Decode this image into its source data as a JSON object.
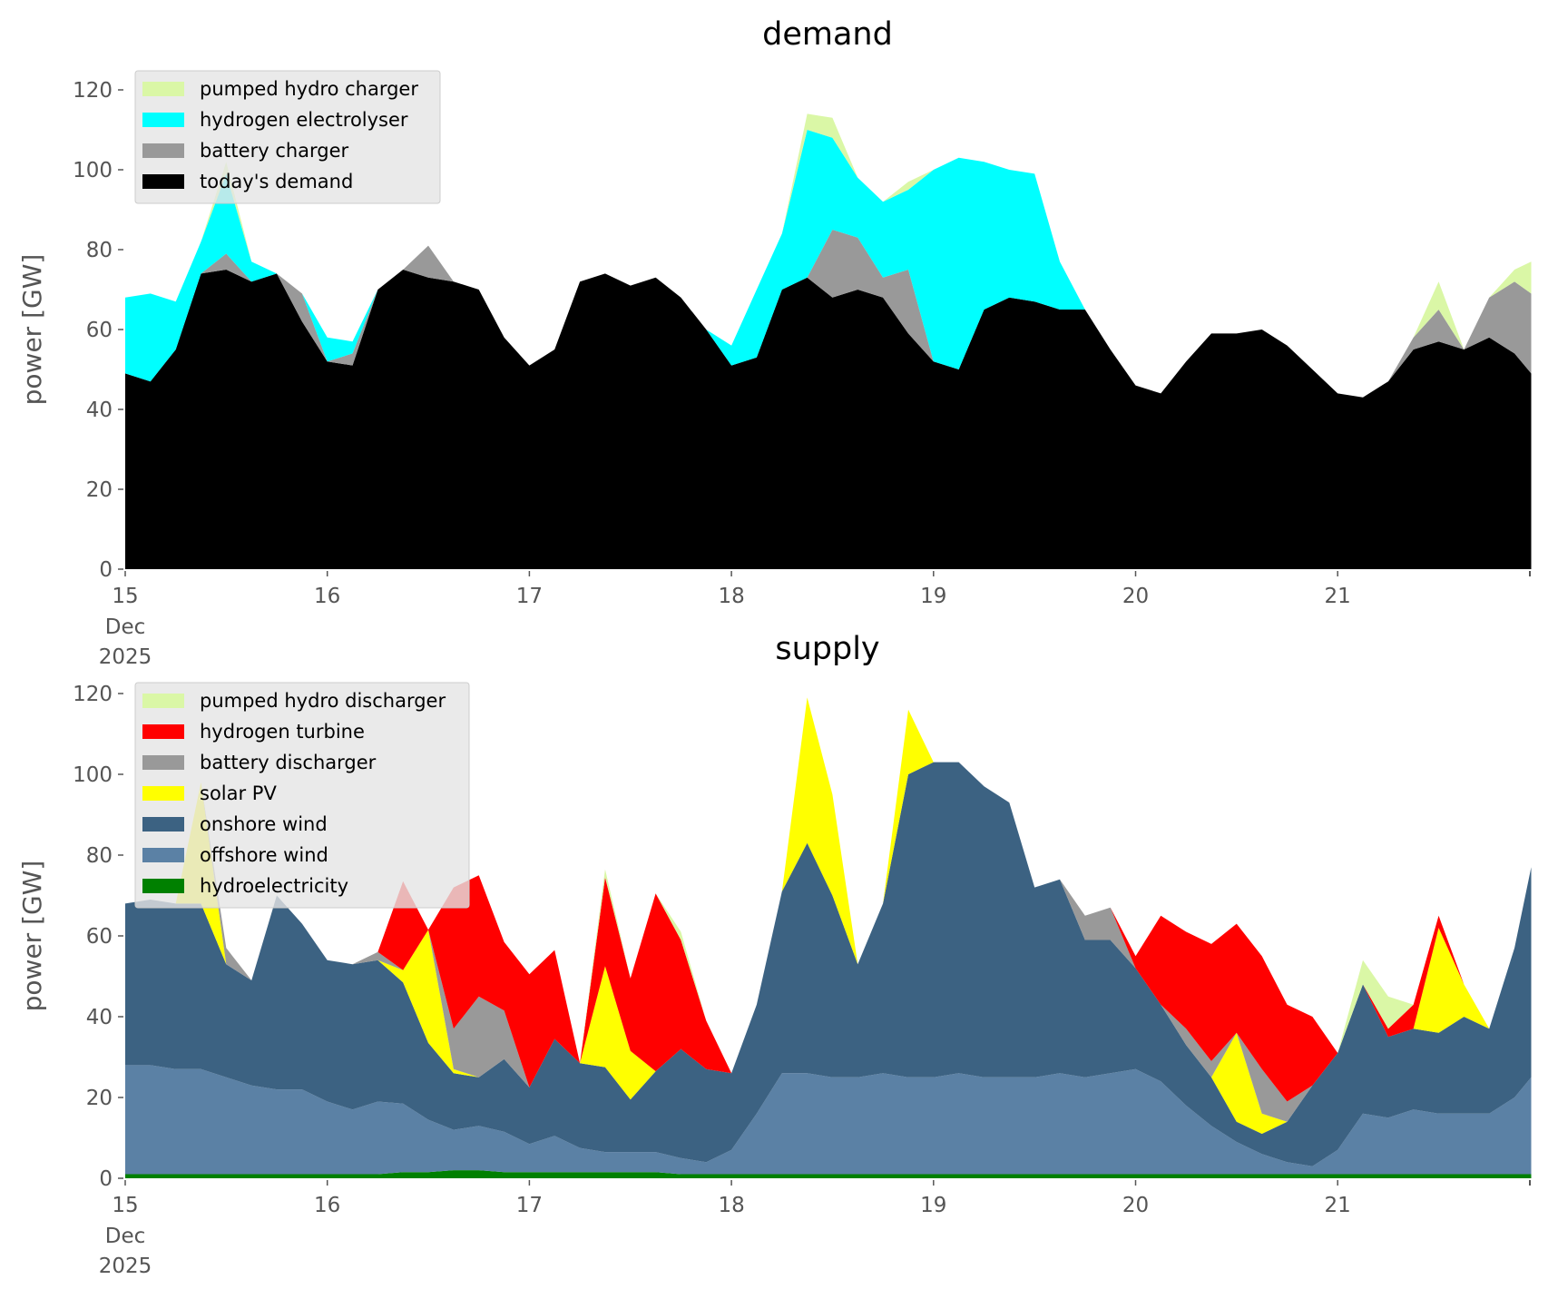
{
  "chart_data": [
    {
      "type": "area",
      "stacked": true,
      "title": "demand",
      "ylabel": "power [GW]",
      "xlabel": "",
      "ylim": [
        0,
        125
      ],
      "yticks": [
        "0",
        "20",
        "40",
        "60",
        "80",
        "100",
        "120"
      ],
      "ytick_values": [
        0,
        20,
        40,
        60,
        80,
        100,
        120
      ],
      "xticks": [
        "15",
        "16",
        "17",
        "18",
        "19",
        "20",
        "21"
      ],
      "xtick_sub": [
        "Dec",
        "2025"
      ],
      "x_unit": "days since 15 Dec 2025 00:00",
      "xlim": [
        0,
        6.958
      ],
      "legend_position": "upper-left",
      "x": [
        0,
        0.125,
        0.25,
        0.375,
        0.5,
        0.625,
        0.75,
        0.875,
        1,
        1.125,
        1.25,
        1.375,
        1.5,
        1.625,
        1.75,
        1.875,
        2,
        2.125,
        2.25,
        2.375,
        2.5,
        2.625,
        2.75,
        2.875,
        3,
        3.125,
        3.25,
        3.375,
        3.5,
        3.625,
        3.75,
        3.875,
        4,
        4.125,
        4.25,
        4.375,
        4.5,
        4.625,
        4.75,
        4.875,
        5,
        5.125,
        5.25,
        5.375,
        5.5,
        5.625,
        5.75,
        5.875,
        6,
        6.125,
        6.25,
        6.375,
        6.5,
        6.625,
        6.75,
        6.875,
        6.958
      ],
      "series": [
        {
          "name": "today's demand",
          "color": "#000000",
          "values": [
            49,
            47,
            55,
            74,
            75,
            72,
            74,
            62,
            52,
            51,
            70,
            75,
            73,
            72,
            70,
            58,
            51,
            55,
            72,
            74,
            71,
            73,
            68,
            60,
            51,
            53,
            70,
            73,
            68,
            70,
            68,
            59,
            52,
            50,
            65,
            68,
            67,
            65,
            65,
            55,
            46,
            44,
            52,
            59,
            59,
            60,
            56,
            50,
            44,
            43,
            47,
            55,
            57,
            55,
            58,
            54,
            49
          ]
        },
        {
          "name": "battery charger",
          "color": "#999999",
          "values": [
            0,
            0,
            0,
            0,
            4,
            0,
            0,
            7,
            0,
            3,
            0,
            0,
            8,
            0,
            0,
            0,
            0,
            0,
            0,
            0,
            0,
            0,
            0,
            0,
            0,
            0,
            0,
            0,
            17,
            13,
            5,
            16,
            0,
            0,
            0,
            0,
            0,
            0,
            0,
            0,
            0,
            0,
            0,
            0,
            0,
            0,
            0,
            0,
            0,
            0,
            0,
            3,
            8,
            0,
            10,
            18,
            20
          ]
        },
        {
          "name": "hydrogen electrolyser",
          "color": "#00ffff",
          "values": [
            19,
            22,
            12,
            8,
            20,
            5,
            0,
            0,
            6,
            3,
            0,
            0,
            0,
            0,
            0,
            0,
            0,
            0,
            0,
            0,
            0,
            0,
            0,
            0,
            5,
            17,
            14,
            37,
            23,
            15,
            19,
            20,
            48,
            53,
            37,
            32,
            32,
            12,
            0,
            0,
            0,
            0,
            0,
            0,
            0,
            0,
            0,
            0,
            0,
            0,
            0,
            0,
            0,
            0,
            0,
            0,
            0
          ]
        },
        {
          "name": "pumped hydro charger",
          "color": "#daf7a6",
          "values": [
            0,
            0,
            0,
            0,
            3,
            0,
            0,
            0,
            0,
            0,
            0,
            0,
            0,
            0,
            0,
            0,
            0,
            0,
            0,
            0,
            0,
            0,
            0,
            0,
            0,
            0,
            0,
            4,
            5,
            0,
            0,
            2,
            0,
            0,
            0,
            0,
            0,
            0,
            0,
            0,
            0,
            0,
            0,
            0,
            0,
            0,
            0,
            0,
            0,
            0,
            0,
            0,
            7,
            0,
            0,
            3,
            8
          ]
        }
      ],
      "legend": [
        "pumped hydro charger",
        "hydrogen electrolyser",
        "battery charger",
        "today's demand"
      ]
    },
    {
      "type": "area",
      "stacked": true,
      "title": "supply",
      "ylabel": "power [GW]",
      "xlabel": "",
      "ylim": [
        0,
        125
      ],
      "yticks": [
        "0",
        "20",
        "40",
        "60",
        "80",
        "100",
        "120"
      ],
      "ytick_values": [
        0,
        20,
        40,
        60,
        80,
        100,
        120
      ],
      "xticks": [
        "15",
        "16",
        "17",
        "18",
        "19",
        "20",
        "21"
      ],
      "xtick_sub": [
        "Dec",
        "2025"
      ],
      "x_unit": "days since 15 Dec 2025 00:00",
      "xlim": [
        0,
        6.958
      ],
      "legend_position": "upper-left",
      "x": [
        0,
        0.125,
        0.25,
        0.375,
        0.5,
        0.625,
        0.75,
        0.875,
        1,
        1.125,
        1.25,
        1.375,
        1.5,
        1.625,
        1.75,
        1.875,
        2,
        2.125,
        2.25,
        2.375,
        2.5,
        2.625,
        2.75,
        2.875,
        3,
        3.125,
        3.25,
        3.375,
        3.5,
        3.625,
        3.75,
        3.875,
        4,
        4.125,
        4.25,
        4.375,
        4.5,
        4.625,
        4.75,
        4.875,
        5,
        5.125,
        5.25,
        5.375,
        5.5,
        5.625,
        5.75,
        5.875,
        6,
        6.125,
        6.25,
        6.375,
        6.5,
        6.625,
        6.75,
        6.875,
        6.958
      ],
      "series": [
        {
          "name": "hydroelectricity",
          "color": "#008000",
          "values": [
            1,
            1,
            1,
            1,
            1,
            1,
            1,
            1,
            1,
            1,
            1,
            1.5,
            1.5,
            2,
            2,
            1.5,
            1.5,
            1.5,
            1.5,
            1.5,
            1.5,
            1.5,
            1,
            1,
            1,
            1,
            1,
            1,
            1,
            1,
            1,
            1,
            1,
            1,
            1,
            1,
            1,
            1,
            1,
            1,
            1,
            1,
            1,
            1,
            1,
            1,
            1,
            1,
            1,
            1,
            1,
            1,
            1,
            1,
            1,
            1,
            1
          ]
        },
        {
          "name": "offshore wind",
          "color": "#5b81a5",
          "values": [
            27,
            27,
            26,
            26,
            24,
            22,
            21,
            21,
            18,
            16,
            18,
            17,
            13,
            10,
            11,
            10,
            7,
            9,
            6,
            5,
            5,
            5,
            4,
            3,
            6,
            15,
            25,
            25,
            24,
            24,
            25,
            24,
            24,
            25,
            24,
            24,
            24,
            25,
            24,
            25,
            26,
            23,
            17,
            12,
            8,
            5,
            3,
            2,
            6,
            15,
            14,
            16,
            15,
            15,
            15,
            19,
            24
          ]
        },
        {
          "name": "onshore wind",
          "color": "#3c6282",
          "values": [
            40,
            41,
            41,
            41,
            28,
            26,
            48,
            41,
            35,
            36,
            35,
            30,
            19,
            14,
            12,
            18,
            14,
            24,
            21,
            21,
            13,
            20,
            27,
            23,
            19,
            27,
            45,
            57,
            45,
            28,
            42,
            75,
            78,
            77,
            72,
            68,
            47,
            48,
            34,
            33,
            25,
            19,
            15,
            12,
            5,
            5,
            10,
            20,
            24,
            32,
            20,
            20,
            20,
            24,
            21,
            37,
            52
          ]
        },
        {
          "name": "solar PV",
          "color": "#ffff00",
          "values": [
            0,
            0,
            0,
            30,
            0,
            0,
            0,
            0,
            0,
            0,
            0,
            3,
            28,
            1,
            0,
            0,
            0,
            0,
            0,
            25,
            12,
            0,
            0,
            0,
            0,
            0,
            0,
            36,
            25,
            0,
            0,
            16,
            0,
            0,
            0,
            0,
            0,
            0,
            0,
            0,
            0,
            0,
            0,
            0,
            22,
            5,
            0,
            0,
            0,
            0,
            0,
            0,
            26,
            8,
            0,
            0,
            0
          ]
        },
        {
          "name": "battery discharger",
          "color": "#999999",
          "values": [
            0,
            0,
            0,
            0,
            4,
            0,
            0,
            0,
            0,
            0,
            2,
            0,
            0,
            10,
            20,
            12,
            0,
            0,
            0,
            0,
            0,
            0,
            0,
            0,
            0,
            0,
            0,
            0,
            0,
            0,
            0,
            0,
            0,
            0,
            0,
            0,
            0,
            0,
            6,
            8,
            0,
            0,
            4,
            4,
            0,
            11,
            5,
            0,
            0,
            0,
            0,
            0,
            0,
            0,
            0,
            0,
            0
          ]
        },
        {
          "name": "hydrogen turbine",
          "color": "#ff0000",
          "values": [
            0,
            0,
            0,
            0,
            0,
            0,
            0,
            0,
            0,
            0,
            0,
            22,
            0,
            35,
            30,
            17,
            28,
            22,
            0,
            22,
            18,
            44,
            27,
            12,
            0,
            0,
            0,
            0,
            0,
            0,
            0,
            0,
            0,
            0,
            0,
            0,
            0,
            0,
            0,
            0,
            3,
            22,
            24,
            29,
            27,
            28,
            24,
            17,
            0,
            0,
            2,
            6,
            3,
            0,
            0,
            0,
            0
          ]
        },
        {
          "name": "pumped hydro discharger",
          "color": "#daf7a6",
          "values": [
            0,
            0,
            0,
            0,
            0,
            0,
            0,
            0,
            0,
            0,
            0,
            0,
            0,
            0,
            0,
            0,
            0,
            0,
            0,
            2,
            0,
            0,
            2,
            0,
            0,
            0,
            0,
            0,
            0,
            0,
            0,
            0,
            0,
            0,
            0,
            0,
            0,
            0,
            0,
            0,
            0,
            0,
            0,
            0,
            0,
            0,
            0,
            0,
            0,
            6,
            8,
            0,
            0,
            0,
            0,
            0,
            0
          ]
        }
      ],
      "legend": [
        "pumped hydro discharger",
        "hydrogen turbine",
        "battery discharger",
        "solar PV",
        "onshore wind",
        "offshore wind",
        "hydroelectricity"
      ]
    }
  ]
}
